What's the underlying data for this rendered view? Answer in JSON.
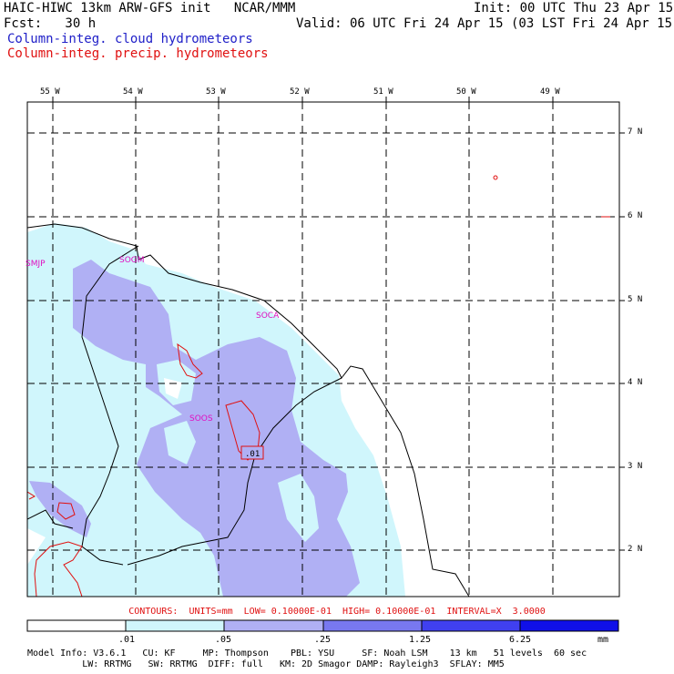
{
  "header": {
    "title_left": "HAIC-HIWC 13km ARW-GFS init   NCAR/MMM",
    "fcst": "Fcst:   30 h",
    "init": "Init: 00 UTC Thu 23 Apr 15",
    "valid": "Valid: 06 UTC Fri 24 Apr 15 (03 LST Fri 24 Apr 15)",
    "legend_cloud": "Column-integ. cloud hydrometeors",
    "legend_precip": "Column-integ. precip. hydrometeors"
  },
  "map": {
    "lon_labels": [
      "55 W",
      "54 W",
      "53 W",
      "52 W",
      "51 W",
      "50 W",
      "49 W"
    ],
    "lat_labels": [
      "7 N",
      "6 N",
      "5 N",
      "4 N",
      "3 N",
      "2 N"
    ],
    "stations": [
      "SMJP",
      "SOGM",
      "SOCA",
      "SOOS"
    ],
    "contour_label": ".01",
    "colors": {
      "light_cloud": "#d0f6fc",
      "med_cloud": "#b0b0f4",
      "precip_contour": "#e01010",
      "station": "#e010c0"
    }
  },
  "contours_text": "CONTOURS:  UNITS=mm  LOW= 0.10000E-01  HIGH= 0.10000E-01  INTERVAL=X  3.0000",
  "colorbar": {
    "ticks": [
      ".01",
      ".05",
      ".25",
      "1.25",
      "6.25"
    ],
    "units": "mm",
    "colors": [
      "#ffffff",
      "#d0f6fc",
      "#b0b0f4",
      "#7878f0",
      "#4040f0",
      "#1010e8"
    ]
  },
  "model_info": {
    "line1": "Model Info: V3.6.1   CU: KF     MP: Thompson    PBL: YSU     SF: Noah LSM    13 km   51 levels  60 sec",
    "line2": "          LW: RRTMG   SW: RRTMG  DIFF: full   KM: 2D Smagor DAMP: Rayleigh3  SFLAY: MM5"
  }
}
